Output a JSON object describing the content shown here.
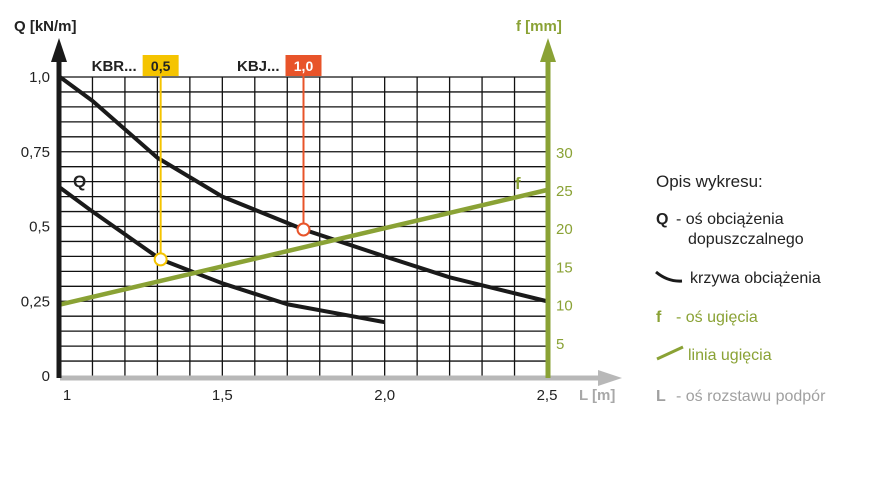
{
  "chart_data": {
    "type": "line",
    "y_left": {
      "label": "Q [kN/m]",
      "range": [
        0,
        1.0
      ],
      "ticks": [
        "0",
        "0,25",
        "0,5",
        "0,75",
        "1,0"
      ],
      "tick_values": [
        0,
        0.25,
        0.5,
        0.75,
        1.0
      ]
    },
    "y_right": {
      "label": "f [mm]",
      "ticks": [
        "5",
        "10",
        "15",
        "20",
        "25",
        "30"
      ],
      "tick_values": [
        5,
        10,
        15,
        20,
        25,
        30
      ]
    },
    "x": {
      "label": "L [m]",
      "range": [
        1,
        2.5
      ],
      "ticks": [
        "1",
        "1,5",
        "2,0",
        "2,5"
      ],
      "tick_values": [
        1,
        1.5,
        2.0,
        2.5
      ]
    },
    "grid": true,
    "series": [
      {
        "name": "KBJ...",
        "color": "#1a1a1a",
        "axis": "Q",
        "points": [
          [
            1,
            1.0
          ],
          [
            1.1,
            0.92
          ],
          [
            1.3,
            0.73
          ],
          [
            1.5,
            0.6
          ],
          [
            1.75,
            0.49
          ],
          [
            2.0,
            0.4
          ],
          [
            2.2,
            0.33
          ],
          [
            2.5,
            0.25
          ]
        ]
      },
      {
        "name": "KBR...",
        "color": "#1a1a1a",
        "axis": "Q",
        "points": [
          [
            1,
            0.63
          ],
          [
            1.1,
            0.55
          ],
          [
            1.31,
            0.39
          ],
          [
            1.5,
            0.31
          ],
          [
            1.7,
            0.24
          ],
          [
            1.9,
            0.2
          ],
          [
            2.0,
            0.18
          ]
        ]
      },
      {
        "name": "f",
        "color": "#8aa235",
        "axis": "f",
        "points": [
          [
            1,
            10
          ],
          [
            2.5,
            25
          ]
        ]
      }
    ],
    "curve_labels": {
      "q": "Q",
      "f": "f"
    },
    "markers": [
      {
        "label": "KBR...",
        "value_label": "0,5",
        "color": "#f5c400",
        "L": 1.31,
        "Q": 0.39
      },
      {
        "label": "KBJ...",
        "value_label": "1,0",
        "color": "#e8542a",
        "L": 1.75,
        "Q": 0.49
      }
    ],
    "legend": {
      "title": "Opis wykresu:",
      "items": [
        {
          "key": "Q",
          "text": "- oś obciążenia",
          "text2": "dopuszczalnego",
          "color": "#222222"
        },
        {
          "key": "",
          "text": "krzywa obciążenia",
          "color": "#222222"
        },
        {
          "key": "f",
          "text": "- oś ugięcia",
          "color": "#8aa235"
        },
        {
          "key": "",
          "text": "linia ugięcia",
          "color": "#8aa235"
        },
        {
          "key": "L",
          "text": "- oś rozstawu podpór",
          "color": "#a0a0a0"
        }
      ]
    }
  }
}
